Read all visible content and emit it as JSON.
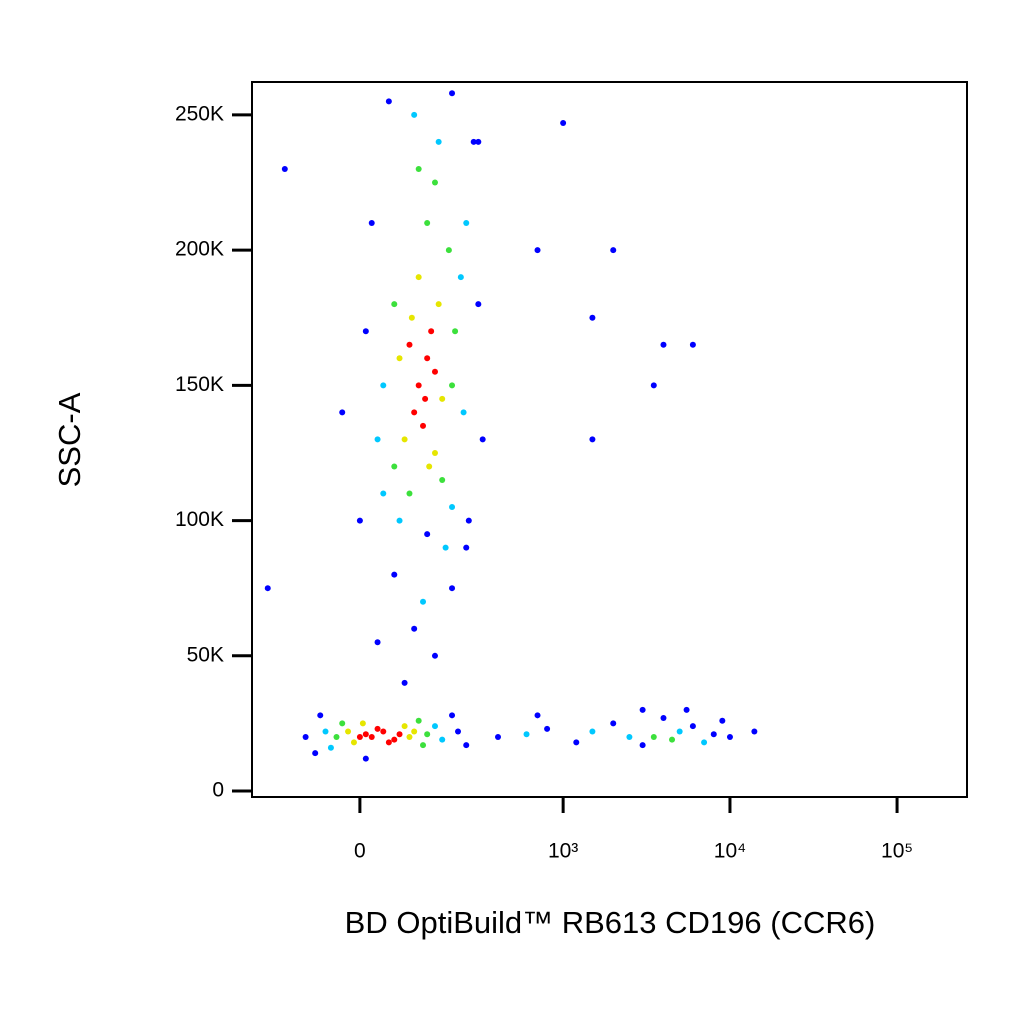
{
  "chart_data": {
    "type": "scatter",
    "x_label": "BD OptiBuild™ RB613 CD196 (CCR6)",
    "y_label": "SSC-A",
    "xscale": "biexponential",
    "xlim": [
      -256,
      262144
    ],
    "ylim": [
      -2200,
      262144
    ],
    "xticks": [
      0,
      {
        "value": 1000,
        "label": "10³"
      },
      {
        "value": 10000,
        "label": "10⁴"
      },
      {
        "value": 100000,
        "label": "10⁵"
      }
    ],
    "yticks": [
      0,
      {
        "value": 50000,
        "label": "50K"
      },
      {
        "value": 100000,
        "label": "100K"
      },
      {
        "value": 150000,
        "label": "150K"
      },
      {
        "value": 200000,
        "label": "200K"
      },
      {
        "value": 250000,
        "label": "250K"
      }
    ],
    "series": [
      {
        "color": "#0000ff",
        "x": [
          -100,
          -80,
          220,
          250,
          -70,
          200,
          10,
          0,
          300,
          320,
          10,
          280,
          20,
          50,
          200,
          260,
          -30,
          60,
          100,
          150,
          200,
          80,
          250,
          130,
          30,
          400,
          800,
          1200,
          2000,
          3000,
          4000,
          6000,
          8000,
          10000,
          14000,
          700,
          3000,
          5500,
          9000,
          2000,
          1500,
          4000,
          6000,
          3500,
          1500,
          700,
          300,
          -150,
          -200,
          1000
        ],
        "values": [
          20000,
          14000,
          22000,
          17000,
          28000,
          28000,
          12000,
          100000,
          180000,
          130000,
          170000,
          240000,
          210000,
          255000,
          258000,
          100000,
          140000,
          80000,
          60000,
          50000,
          75000,
          40000,
          90000,
          95000,
          55000,
          20000,
          23000,
          18000,
          25000,
          17000,
          27000,
          24000,
          21000,
          20000,
          22000,
          28000,
          30000,
          30000,
          26000,
          200000,
          175000,
          165000,
          165000,
          150000,
          130000,
          200000,
          240000,
          230000,
          75000,
          247000
        ]
      },
      {
        "color": "#00c8ff",
        "x": [
          -60,
          170,
          150,
          -50,
          40,
          230,
          240,
          40,
          160,
          200,
          70,
          250,
          100,
          30,
          120,
          180,
          600,
          1500,
          2500,
          5000,
          7000
        ],
        "values": [
          22000,
          19000,
          24000,
          16000,
          110000,
          190000,
          140000,
          150000,
          240000,
          105000,
          100000,
          210000,
          250000,
          130000,
          70000,
          90000,
          21000,
          22000,
          20000,
          22000,
          18000
        ]
      },
      {
        "color": "#3ce03c",
        "x": [
          -40,
          130,
          120,
          -30,
          110,
          60,
          190,
          200,
          60,
          130,
          170,
          90,
          210,
          150,
          110,
          3500,
          4500
        ],
        "values": [
          20000,
          21000,
          17000,
          25000,
          26000,
          120000,
          200000,
          150000,
          180000,
          210000,
          115000,
          110000,
          170000,
          225000,
          230000,
          20000,
          19000
        ]
      },
      {
        "color": "#e6e600",
        "x": [
          -20,
          90,
          80,
          -10,
          100,
          5,
          80,
          160,
          170,
          70,
          110,
          150,
          95,
          135
        ],
        "values": [
          22000,
          20000,
          24000,
          18000,
          22000,
          25000,
          130000,
          180000,
          145000,
          160000,
          190000,
          125000,
          175000,
          120000
        ]
      },
      {
        "color": "#ff0000",
        "x": [
          20,
          40,
          60,
          10,
          50,
          30,
          70,
          0,
          110,
          130,
          100,
          140,
          120,
          150,
          90,
          125
        ],
        "values": [
          20000,
          22000,
          19000,
          21000,
          18000,
          23000,
          21000,
          20000,
          150000,
          160000,
          140000,
          170000,
          135000,
          155000,
          165000,
          145000
        ]
      }
    ]
  }
}
